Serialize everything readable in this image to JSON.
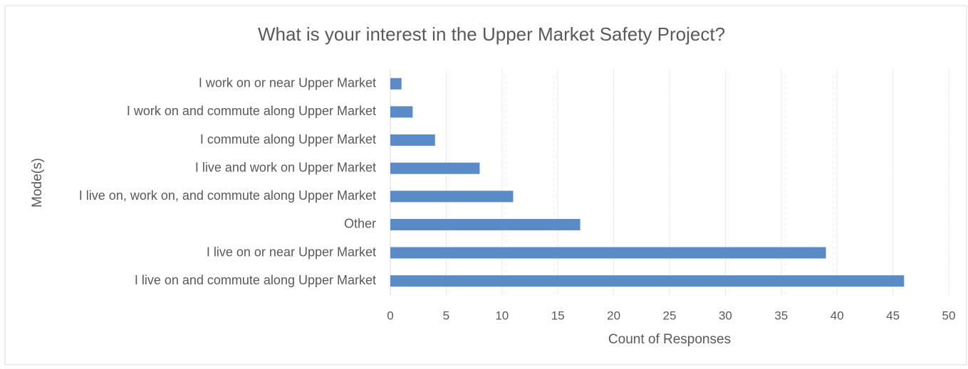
{
  "chart_data": {
    "type": "bar",
    "orientation": "horizontal",
    "title": "What is your interest in the Upper Market Safety Project?",
    "x_label": "Count of Responses",
    "y_label": "Mode(s)",
    "categories": [
      "I work on or near Upper Market",
      "I work on and commute along Upper Market",
      "I commute along Upper Market",
      "I live and work on Upper Market",
      "I live on, work on, and commute along Upper Market",
      "Other",
      "I live on or near Upper Market",
      "I live on and commute along Upper Market"
    ],
    "values": [
      1,
      2,
      4,
      8,
      11,
      17,
      39,
      46
    ],
    "color": "#5b8bc7",
    "xlim": [
      0,
      50
    ],
    "xticks": [
      0,
      5,
      10,
      15,
      20,
      25,
      30,
      35,
      40,
      45,
      50
    ],
    "grid": true
  }
}
